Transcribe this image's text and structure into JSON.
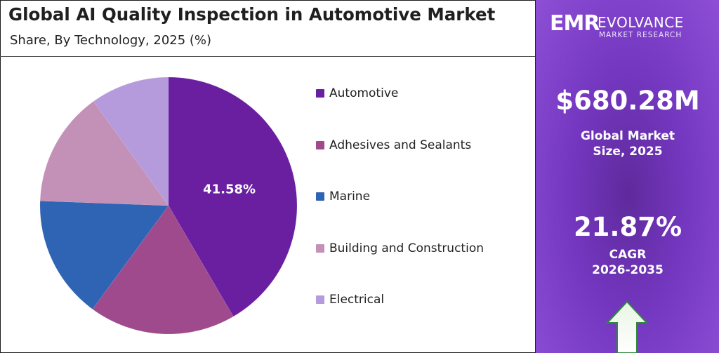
{
  "title": "Global AI Quality Inspection in Automotive Market",
  "subtitle": "Share, By Technology, 2025 (%)",
  "chart_data": {
    "type": "pie",
    "categories": [
      "Automotive",
      "Adhesives and Sealants",
      "Marine",
      "Building and Construction",
      "Electrical"
    ],
    "values": [
      41.58,
      18.5,
      15.5,
      14.5,
      9.92
    ],
    "data_labels": [
      "41.58%",
      "",
      "",
      "",
      ""
    ],
    "colors": [
      "#6a1fa0",
      "#a04a8e",
      "#2f63b4",
      "#c390b8",
      "#b59bdb"
    ],
    "legend_position": "right"
  },
  "sidebar": {
    "logo_mark": "EMR",
    "logo_word": "EVOLVANCE",
    "logo_sub": "MARKET RESEARCH",
    "market_size": "$680.28M",
    "market_size_caption_line1": "Global Market",
    "market_size_caption_line2": "Size, 2025",
    "cagr_value": "21.87%",
    "cagr_caption_line1": "CAGR",
    "cagr_caption_line2": "2026-2035"
  }
}
